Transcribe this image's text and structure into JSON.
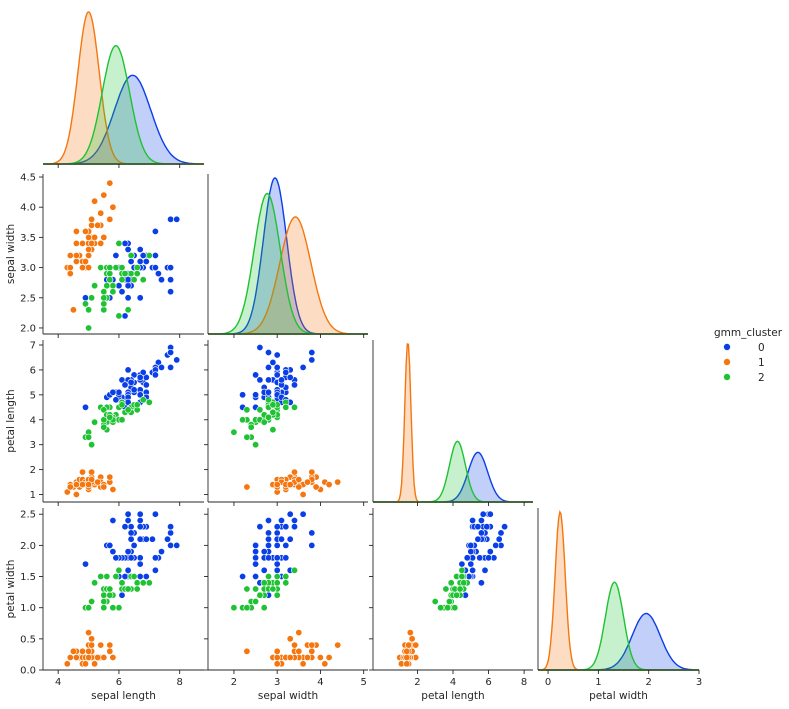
{
  "chart_data": {
    "type": "pairplot",
    "variables": [
      "sepal length",
      "sepal width",
      "petal length",
      "petal width"
    ],
    "axis_labels": {
      "x": [
        "sepal length",
        "sepal width",
        "petal length",
        "petal width"
      ],
      "y": [
        "",
        "sepal width",
        "petal length",
        "petal width"
      ]
    },
    "ticks": {
      "sepal length": [
        4,
        6,
        8
      ],
      "sepal width x": [
        2,
        3,
        4,
        5
      ],
      "sepal width y": [
        2.0,
        2.5,
        3.0,
        3.5,
        4.0,
        4.5
      ],
      "petal length x": [
        2,
        4,
        6,
        8
      ],
      "petal length y": [
        1,
        2,
        3,
        4,
        5,
        6,
        7
      ],
      "petal width x": [
        0,
        1,
        2,
        3
      ],
      "petal width y": [
        0.0,
        0.5,
        1.0,
        1.5,
        2.0,
        2.5
      ]
    },
    "axis_ranges": {
      "sepal length": [
        3.5,
        8.8
      ],
      "sepal width x": [
        1.4,
        5.1
      ],
      "sepal width y": [
        1.9,
        4.55
      ],
      "petal length x": [
        -0.5,
        8.5
      ],
      "petal length y": [
        0.7,
        7.2
      ],
      "petal width x": [
        -0.2,
        3.0
      ],
      "petal width y": [
        0.0,
        2.6
      ]
    },
    "legend": {
      "title": "gmm_cluster",
      "placement": "right",
      "entries": [
        {
          "label": "0",
          "color": "#0a3fe8"
        },
        {
          "label": "1",
          "color": "#f5760f"
        },
        {
          "label": "2",
          "color": "#1ec232"
        }
      ]
    },
    "kde": [
      {
        "cluster": "0",
        "mean": [
          6.45,
          2.95,
          5.4,
          1.95
        ],
        "sd": [
          0.6,
          0.27,
          0.55,
          0.28
        ]
      },
      {
        "cluster": "1",
        "mean": [
          5.0,
          3.42,
          1.46,
          0.24
        ],
        "sd": [
          0.35,
          0.36,
          0.17,
          0.1
        ]
      },
      {
        "cluster": "2",
        "mean": [
          5.9,
          2.77,
          4.25,
          1.32
        ],
        "sd": [
          0.45,
          0.3,
          0.45,
          0.18
        ]
      }
    ],
    "points": {
      "0": [
        [
          6.3,
          3.3,
          6.0,
          2.5
        ],
        [
          7.1,
          3.0,
          5.9,
          2.1
        ],
        [
          6.3,
          2.9,
          5.6,
          1.8
        ],
        [
          6.5,
          3.0,
          5.8,
          2.2
        ],
        [
          7.6,
          3.0,
          6.6,
          2.1
        ],
        [
          7.3,
          2.9,
          6.3,
          1.8
        ],
        [
          6.7,
          2.5,
          5.8,
          1.8
        ],
        [
          7.2,
          3.6,
          6.1,
          2.5
        ],
        [
          6.5,
          3.2,
          5.1,
          2.0
        ],
        [
          6.4,
          2.7,
          5.3,
          1.9
        ],
        [
          6.8,
          3.0,
          5.5,
          2.1
        ],
        [
          5.8,
          2.8,
          5.1,
          2.4
        ],
        [
          6.4,
          3.2,
          5.3,
          2.3
        ],
        [
          6.5,
          3.0,
          5.5,
          1.8
        ],
        [
          7.7,
          3.8,
          6.7,
          2.2
        ],
        [
          7.7,
          2.6,
          6.9,
          2.3
        ],
        [
          6.9,
          3.2,
          5.7,
          2.3
        ],
        [
          7.7,
          2.8,
          6.7,
          2.0
        ],
        [
          6.3,
          2.7,
          4.9,
          1.8
        ],
        [
          6.7,
          3.3,
          5.7,
          2.1
        ],
        [
          7.2,
          3.2,
          6.0,
          1.8
        ],
        [
          6.2,
          2.8,
          4.8,
          1.8
        ],
        [
          6.1,
          3.0,
          4.9,
          1.8
        ],
        [
          6.4,
          2.8,
          5.6,
          2.1
        ],
        [
          7.2,
          3.0,
          5.8,
          1.6
        ],
        [
          7.4,
          2.8,
          6.1,
          1.9
        ],
        [
          7.9,
          3.8,
          6.4,
          2.0
        ],
        [
          6.4,
          2.8,
          5.6,
          2.2
        ],
        [
          6.3,
          2.8,
          5.1,
          1.5
        ],
        [
          6.1,
          2.6,
          5.6,
          1.4
        ],
        [
          7.7,
          3.0,
          6.1,
          2.3
        ],
        [
          6.3,
          3.4,
          5.6,
          2.4
        ],
        [
          6.4,
          3.1,
          5.5,
          1.8
        ],
        [
          6.0,
          3.0,
          4.8,
          1.8
        ],
        [
          6.9,
          3.1,
          5.4,
          2.1
        ],
        [
          6.7,
          3.1,
          5.6,
          2.4
        ],
        [
          6.9,
          3.1,
          5.1,
          2.3
        ],
        [
          5.8,
          2.7,
          5.1,
          1.9
        ],
        [
          6.8,
          3.2,
          5.9,
          2.3
        ],
        [
          6.7,
          3.3,
          5.7,
          2.5
        ],
        [
          6.7,
          3.0,
          5.2,
          2.3
        ],
        [
          6.3,
          2.5,
          5.0,
          1.9
        ],
        [
          6.5,
          3.0,
          5.2,
          2.0
        ],
        [
          6.2,
          3.4,
          5.4,
          2.3
        ],
        [
          5.9,
          3.0,
          5.1,
          1.8
        ],
        [
          4.9,
          2.5,
          4.5,
          1.7
        ],
        [
          5.6,
          2.8,
          4.9,
          2.0
        ],
        [
          6.0,
          2.2,
          5.0,
          1.5
        ],
        [
          6.3,
          2.5,
          4.9,
          1.5
        ],
        [
          6.1,
          2.8,
          4.7,
          1.2
        ],
        [
          6.7,
          3.0,
          5.0,
          1.7
        ],
        [
          6.0,
          2.7,
          5.1,
          1.6
        ],
        [
          6.7,
          3.1,
          4.7,
          1.5
        ],
        [
          6.9,
          3.1,
          4.9,
          1.5
        ],
        [
          5.9,
          3.2,
          4.8,
          1.8
        ],
        [
          6.2,
          2.2,
          4.5,
          1.5
        ],
        [
          6.3,
          3.3,
          4.7,
          1.6
        ],
        [
          5.7,
          2.5,
          5.0,
          2.0
        ],
        [
          5.8,
          2.8,
          5.1,
          2.4
        ],
        [
          6.4,
          3.2,
          4.5,
          1.5
        ]
      ],
      "1": [
        [
          5.1,
          3.5,
          1.4,
          0.2
        ],
        [
          4.9,
          3.0,
          1.4,
          0.2
        ],
        [
          4.7,
          3.2,
          1.3,
          0.2
        ],
        [
          4.6,
          3.1,
          1.5,
          0.2
        ],
        [
          5.0,
          3.6,
          1.4,
          0.2
        ],
        [
          5.4,
          3.9,
          1.7,
          0.4
        ],
        [
          4.6,
          3.4,
          1.4,
          0.3
        ],
        [
          5.0,
          3.4,
          1.5,
          0.2
        ],
        [
          4.4,
          2.9,
          1.4,
          0.2
        ],
        [
          4.9,
          3.1,
          1.5,
          0.1
        ],
        [
          5.4,
          3.7,
          1.5,
          0.2
        ],
        [
          4.8,
          3.4,
          1.6,
          0.2
        ],
        [
          4.8,
          3.0,
          1.4,
          0.1
        ],
        [
          4.3,
          3.0,
          1.1,
          0.1
        ],
        [
          5.8,
          4.0,
          1.2,
          0.2
        ],
        [
          5.7,
          4.4,
          1.5,
          0.4
        ],
        [
          5.4,
          3.9,
          1.3,
          0.4
        ],
        [
          5.1,
          3.5,
          1.4,
          0.3
        ],
        [
          5.7,
          3.8,
          1.7,
          0.3
        ],
        [
          5.1,
          3.8,
          1.5,
          0.3
        ],
        [
          5.4,
          3.4,
          1.7,
          0.2
        ],
        [
          5.1,
          3.7,
          1.5,
          0.4
        ],
        [
          4.6,
          3.6,
          1.0,
          0.2
        ],
        [
          5.1,
          3.3,
          1.7,
          0.5
        ],
        [
          4.8,
          3.4,
          1.9,
          0.2
        ],
        [
          5.0,
          3.0,
          1.6,
          0.2
        ],
        [
          5.0,
          3.4,
          1.6,
          0.4
        ],
        [
          5.2,
          3.5,
          1.5,
          0.2
        ],
        [
          5.2,
          3.4,
          1.4,
          0.2
        ],
        [
          4.7,
          3.2,
          1.6,
          0.2
        ],
        [
          4.8,
          3.1,
          1.6,
          0.2
        ],
        [
          5.4,
          3.4,
          1.5,
          0.4
        ],
        [
          5.2,
          4.1,
          1.5,
          0.1
        ],
        [
          5.5,
          4.2,
          1.4,
          0.2
        ],
        [
          4.9,
          3.1,
          1.5,
          0.2
        ],
        [
          5.0,
          3.2,
          1.2,
          0.2
        ],
        [
          5.5,
          3.5,
          1.3,
          0.2
        ],
        [
          4.9,
          3.6,
          1.4,
          0.1
        ],
        [
          4.4,
          3.0,
          1.3,
          0.2
        ],
        [
          5.1,
          3.4,
          1.5,
          0.2
        ],
        [
          5.0,
          3.5,
          1.3,
          0.3
        ],
        [
          4.5,
          2.3,
          1.3,
          0.3
        ],
        [
          4.4,
          3.2,
          1.3,
          0.2
        ],
        [
          5.0,
          3.5,
          1.6,
          0.6
        ],
        [
          5.1,
          3.8,
          1.9,
          0.4
        ],
        [
          4.8,
          3.0,
          1.4,
          0.3
        ],
        [
          5.1,
          3.8,
          1.6,
          0.2
        ],
        [
          4.6,
          3.2,
          1.4,
          0.2
        ],
        [
          5.3,
          3.7,
          1.5,
          0.2
        ],
        [
          5.0,
          3.3,
          1.4,
          0.2
        ]
      ],
      "2": [
        [
          7.0,
          3.2,
          4.7,
          1.4
        ],
        [
          6.4,
          3.2,
          4.5,
          1.5
        ],
        [
          5.5,
          2.3,
          4.0,
          1.3
        ],
        [
          6.5,
          2.8,
          4.6,
          1.5
        ],
        [
          5.7,
          2.8,
          4.5,
          1.3
        ],
        [
          4.9,
          2.4,
          3.3,
          1.0
        ],
        [
          6.6,
          2.9,
          4.6,
          1.3
        ],
        [
          5.2,
          2.7,
          3.9,
          1.4
        ],
        [
          5.0,
          2.0,
          3.5,
          1.0
        ],
        [
          5.9,
          3.0,
          4.2,
          1.5
        ],
        [
          6.0,
          2.2,
          4.0,
          1.0
        ],
        [
          6.1,
          2.9,
          4.7,
          1.4
        ],
        [
          5.6,
          2.9,
          3.6,
          1.3
        ],
        [
          5.6,
          3.0,
          4.5,
          1.5
        ],
        [
          5.8,
          2.7,
          4.1,
          1.0
        ],
        [
          5.6,
          2.5,
          3.9,
          1.1
        ],
        [
          6.1,
          2.8,
          4.0,
          1.3
        ],
        [
          6.4,
          2.9,
          4.3,
          1.3
        ],
        [
          6.6,
          3.0,
          4.4,
          1.4
        ],
        [
          6.8,
          2.8,
          4.8,
          1.4
        ],
        [
          5.5,
          2.4,
          3.8,
          1.1
        ],
        [
          5.5,
          2.4,
          3.7,
          1.0
        ],
        [
          5.8,
          2.7,
          3.9,
          1.2
        ],
        [
          5.4,
          3.0,
          4.5,
          1.5
        ],
        [
          6.0,
          3.4,
          4.5,
          1.6
        ],
        [
          5.6,
          3.0,
          4.1,
          1.3
        ],
        [
          5.5,
          2.5,
          4.0,
          1.3
        ],
        [
          5.5,
          2.6,
          4.4,
          1.2
        ],
        [
          6.1,
          3.0,
          4.6,
          1.4
        ],
        [
          5.8,
          2.6,
          4.0,
          1.2
        ],
        [
          5.0,
          2.3,
          3.3,
          1.0
        ],
        [
          5.6,
          2.7,
          4.2,
          1.3
        ],
        [
          5.7,
          3.0,
          4.2,
          1.2
        ],
        [
          5.7,
          2.9,
          4.2,
          1.3
        ],
        [
          6.2,
          2.9,
          4.3,
          1.3
        ],
        [
          5.1,
          2.5,
          3.0,
          1.1
        ],
        [
          5.7,
          2.8,
          4.1,
          1.3
        ],
        [
          6.6,
          2.9,
          4.6,
          1.3
        ],
        [
          5.2,
          2.7,
          3.9,
          1.4
        ],
        [
          6.3,
          2.3,
          4.4,
          1.3
        ]
      ]
    }
  }
}
